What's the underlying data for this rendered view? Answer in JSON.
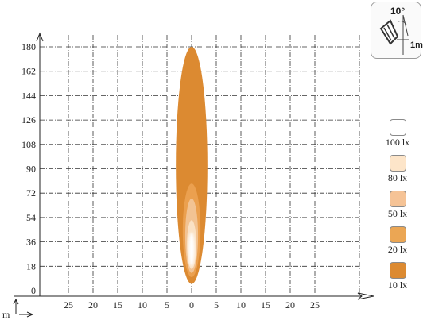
{
  "chart_data": {
    "type": "illuminance-diagram",
    "y_axis": {
      "ticks": [
        "0",
        "18",
        "36",
        "54",
        "72",
        "90",
        "108",
        "126",
        "144",
        "162",
        "180"
      ],
      "max": 180
    },
    "x_axis": {
      "ticks": [
        "25",
        "20",
        "15",
        "10",
        "5",
        "0",
        "5",
        "10",
        "15",
        "20",
        "25"
      ],
      "unit_label": "m"
    },
    "isolux": [
      {
        "lux": 10,
        "color": "#dc8a31",
        "reach": [
          5,
          180
        ],
        "half_width": 3.2
      },
      {
        "lux": 20,
        "color": "#eba04f",
        "reach": [
          10,
          79
        ],
        "half_width": 1.8
      },
      {
        "lux": 50,
        "color": "#f2c393",
        "reach": [
          13,
          68
        ],
        "half_width": 1.3
      },
      {
        "lux": 80,
        "color": "#fae1c4",
        "reach": [
          16,
          52
        ],
        "half_width": 0.95
      },
      {
        "lux": 100,
        "color": "#ffffff",
        "reach": [
          18,
          43
        ],
        "half_width": 0.6
      }
    ]
  },
  "legend": [
    {
      "label": "100 lx",
      "color": "#ffffff"
    },
    {
      "label": "80 lx",
      "color": "#fde5c9"
    },
    {
      "label": "50 lx",
      "color": "#f5c396"
    },
    {
      "label": "20 lx",
      "color": "#eba654"
    },
    {
      "label": "10 lx",
      "color": "#dc8a31"
    }
  ],
  "badge": {
    "angle": "10°",
    "distance": "1m",
    "icon": "lamp-tilt-icon"
  }
}
